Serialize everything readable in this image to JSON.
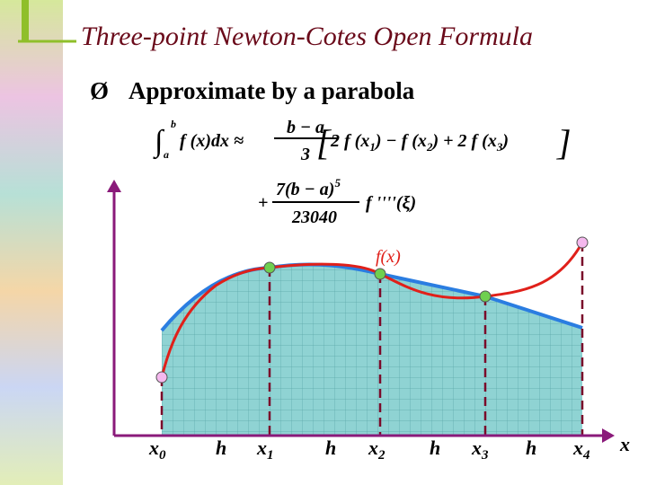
{
  "header": {
    "title": "Three-point Newton-Cotes Open Formula"
  },
  "bullet": {
    "marker": "Ø",
    "text": "Approximate by a parabola"
  },
  "formula": {
    "integral": "∫",
    "lower": "a",
    "upper": "b",
    "integrand": "f (x)dx ≈",
    "frac1": {
      "num": "b − a",
      "den": "3"
    },
    "open": "[",
    "close": "]",
    "bracket": [
      "2 f (x",
      "1",
      ") − f (x",
      "2",
      ") + 2 f (x",
      "3",
      ")"
    ],
    "plus": "+",
    "frac2": {
      "num": "7(b − a)",
      "exp": "5",
      "den": "23040"
    },
    "error": "f ''''(ξ)"
  },
  "plot": {
    "curve_label": "f(x)",
    "axis_label": "x",
    "nodes": [
      {
        "base": "x",
        "sub": "0"
      },
      {
        "base": "x",
        "sub": "1"
      },
      {
        "base": "x",
        "sub": "2"
      },
      {
        "base": "x",
        "sub": "3"
      },
      {
        "base": "x",
        "sub": "4"
      }
    ],
    "spacing": [
      "h",
      "h",
      "h",
      "h"
    ]
  }
}
